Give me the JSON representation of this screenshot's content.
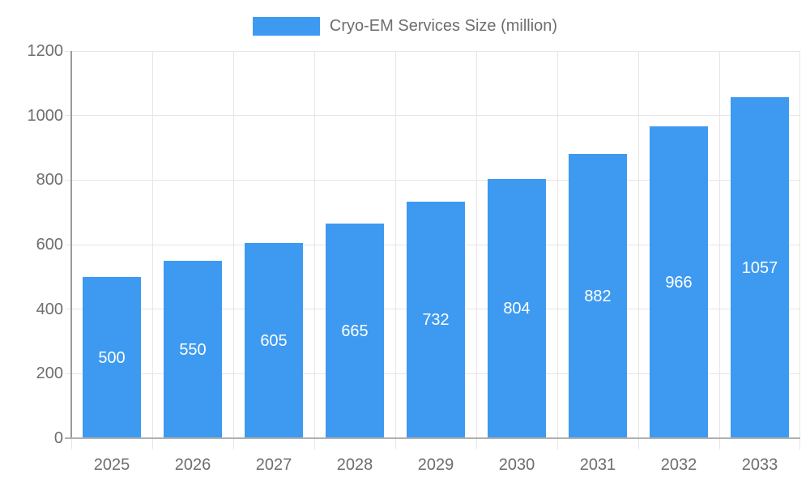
{
  "legend": {
    "label": "Cryo-EM Services Size (million)"
  },
  "colors": {
    "bar": "#3d9af0",
    "grid": "#e6e6e6",
    "y_axis": "#9a9a9a",
    "x_axis": "#b0b0b0",
    "tick_text": "#6e6e6e",
    "bar_label_text": "#ffffff",
    "background": "#ffffff"
  },
  "chart_data": {
    "type": "bar",
    "title": "",
    "legend_entries": [
      "Cryo-EM Services Size (million)"
    ],
    "legend_position": "top",
    "categories": [
      "2025",
      "2026",
      "2027",
      "2028",
      "2029",
      "2030",
      "2031",
      "2032",
      "2033"
    ],
    "values": [
      500,
      550,
      605,
      665,
      732,
      804,
      882,
      966,
      1057
    ],
    "xlabel": "",
    "ylabel": "",
    "ylim": [
      0,
      1200
    ],
    "yticks": [
      0,
      200,
      400,
      600,
      800,
      1000,
      1200
    ],
    "grid": true,
    "bar_value_labels": true
  }
}
